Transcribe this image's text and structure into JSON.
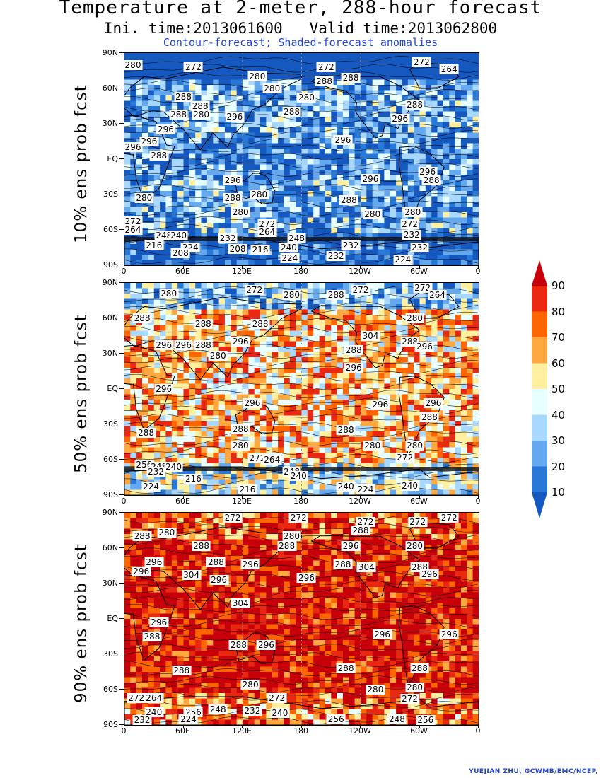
{
  "title": {
    "line1": "Temperature at 2-meter, 288-hour forecast",
    "line2": "Ini. time:2013061600   Valid time:2013062800",
    "line3": "Contour-forecast; Shaded-forecast anomalies"
  },
  "axes": {
    "lat_labels": [
      "90N",
      "60N",
      "30N",
      "EQ",
      "30S",
      "60S",
      "90S"
    ],
    "lon_labels": [
      "0",
      "60E",
      "120E",
      "180",
      "120W",
      "60W",
      "0"
    ]
  },
  "panels": [
    {
      "ylabel": "10% ens prob fcst",
      "contour_labels": [
        {
          "text": "280",
          "lon": 5,
          "lat": 80
        },
        {
          "text": "272",
          "lon": 70,
          "lat": 78
        },
        {
          "text": "272",
          "lon": 205,
          "lat": 78
        },
        {
          "text": "272",
          "lon": 302,
          "lat": 82
        },
        {
          "text": "264",
          "lon": 330,
          "lat": 76
        },
        {
          "text": "280",
          "lon": 135,
          "lat": 70
        },
        {
          "text": "288",
          "lon": 203,
          "lat": 66
        },
        {
          "text": "288",
          "lon": 230,
          "lat": 69
        },
        {
          "text": "280",
          "lon": 150,
          "lat": 60
        },
        {
          "text": "288",
          "lon": 60,
          "lat": 53
        },
        {
          "text": "280",
          "lon": 185,
          "lat": 52
        },
        {
          "text": "288",
          "lon": 77,
          "lat": 45
        },
        {
          "text": "288",
          "lon": 295,
          "lat": 46
        },
        {
          "text": "288",
          "lon": 55,
          "lat": 38
        },
        {
          "text": "280",
          "lon": 78,
          "lat": 38
        },
        {
          "text": "296",
          "lon": 112,
          "lat": 36
        },
        {
          "text": "288",
          "lon": 170,
          "lat": 40
        },
        {
          "text": "296",
          "lon": 280,
          "lat": 34
        },
        {
          "text": "296",
          "lon": 42,
          "lat": 25
        },
        {
          "text": "296",
          "lon": 25,
          "lat": 15
        },
        {
          "text": "296",
          "lon": 222,
          "lat": 16
        },
        {
          "text": "296",
          "lon": 5,
          "lat": 10
        },
        {
          "text": "288",
          "lon": 35,
          "lat": 3
        },
        {
          "text": "296",
          "lon": 308,
          "lat": -11
        },
        {
          "text": "288",
          "lon": 312,
          "lat": -18
        },
        {
          "text": "296",
          "lon": 110,
          "lat": -18
        },
        {
          "text": "296",
          "lon": 250,
          "lat": -17
        },
        {
          "text": "288",
          "lon": 110,
          "lat": -33
        },
        {
          "text": "280",
          "lon": 137,
          "lat": -30
        },
        {
          "text": "280",
          "lon": 20,
          "lat": -33
        },
        {
          "text": "288",
          "lon": 228,
          "lat": -35
        },
        {
          "text": "280",
          "lon": 118,
          "lat": -45
        },
        {
          "text": "280",
          "lon": 293,
          "lat": -45
        },
        {
          "text": "280",
          "lon": 252,
          "lat": -47
        },
        {
          "text": "272",
          "lon": 3,
          "lat": -53
        },
        {
          "text": "272",
          "lon": 145,
          "lat": -55
        },
        {
          "text": "272",
          "lon": 290,
          "lat": -55
        },
        {
          "text": "264",
          "lon": 2,
          "lat": -60
        },
        {
          "text": "264",
          "lon": 145,
          "lat": -62
        },
        {
          "text": "248",
          "lon": 40,
          "lat": -65
        },
        {
          "text": "240",
          "lon": 55,
          "lat": -65
        },
        {
          "text": "232",
          "lon": 105,
          "lat": -67
        },
        {
          "text": "248",
          "lon": 175,
          "lat": -67
        },
        {
          "text": "232",
          "lon": 292,
          "lat": -64
        },
        {
          "text": "216",
          "lon": 30,
          "lat": -73
        },
        {
          "text": "224",
          "lon": 67,
          "lat": -75
        },
        {
          "text": "208",
          "lon": 115,
          "lat": -76
        },
        {
          "text": "216",
          "lon": 138,
          "lat": -77
        },
        {
          "text": "240",
          "lon": 167,
          "lat": -75
        },
        {
          "text": "232",
          "lon": 230,
          "lat": -73
        },
        {
          "text": "232",
          "lon": 300,
          "lat": -75
        },
        {
          "text": "208",
          "lon": 57,
          "lat": -80
        },
        {
          "text": "224",
          "lon": 168,
          "lat": -84
        },
        {
          "text": "232",
          "lon": 215,
          "lat": -82
        },
        {
          "text": "224",
          "lon": 283,
          "lat": -85
        }
      ]
    },
    {
      "ylabel": "50% ens prob fcst",
      "contour_labels": [
        {
          "text": "280",
          "lon": 45,
          "lat": 81
        },
        {
          "text": "272",
          "lon": 132,
          "lat": 84
        },
        {
          "text": "280",
          "lon": 170,
          "lat": 80
        },
        {
          "text": "288",
          "lon": 215,
          "lat": 80
        },
        {
          "text": "272",
          "lon": 240,
          "lat": 84
        },
        {
          "text": "272",
          "lon": 303,
          "lat": 86
        },
        {
          "text": "264",
          "lon": 318,
          "lat": 80
        },
        {
          "text": "288",
          "lon": 18,
          "lat": 60
        },
        {
          "text": "288",
          "lon": 80,
          "lat": 55
        },
        {
          "text": "288",
          "lon": 138,
          "lat": 55
        },
        {
          "text": "280",
          "lon": 295,
          "lat": 60
        },
        {
          "text": "304",
          "lon": 250,
          "lat": 45
        },
        {
          "text": "296",
          "lon": 118,
          "lat": 40
        },
        {
          "text": "288",
          "lon": 290,
          "lat": 40
        },
        {
          "text": "296",
          "lon": 305,
          "lat": 36
        },
        {
          "text": "296",
          "lon": 40,
          "lat": 37
        },
        {
          "text": "296",
          "lon": 60,
          "lat": 37
        },
        {
          "text": "288",
          "lon": 80,
          "lat": 37
        },
        {
          "text": "288",
          "lon": 233,
          "lat": 33
        },
        {
          "text": "280",
          "lon": 95,
          "lat": 28
        },
        {
          "text": "296",
          "lon": 233,
          "lat": 18
        },
        {
          "text": "296",
          "lon": 40,
          "lat": 0
        },
        {
          "text": "296",
          "lon": 130,
          "lat": -12
        },
        {
          "text": "296",
          "lon": 260,
          "lat": -13
        },
        {
          "text": "296",
          "lon": 314,
          "lat": -12
        },
        {
          "text": "288",
          "lon": 310,
          "lat": -24
        },
        {
          "text": "288",
          "lon": 22,
          "lat": -37
        },
        {
          "text": "288",
          "lon": 118,
          "lat": -34
        },
        {
          "text": "288",
          "lon": 225,
          "lat": -35
        },
        {
          "text": "280",
          "lon": 118,
          "lat": -48
        },
        {
          "text": "280",
          "lon": 252,
          "lat": -48
        },
        {
          "text": "280",
          "lon": 295,
          "lat": -48
        },
        {
          "text": "272",
          "lon": 135,
          "lat": -59
        },
        {
          "text": "264",
          "lon": 150,
          "lat": -60
        },
        {
          "text": "272",
          "lon": 285,
          "lat": -58
        },
        {
          "text": "256",
          "lon": 20,
          "lat": -64
        },
        {
          "text": "248",
          "lon": 35,
          "lat": -66
        },
        {
          "text": "240",
          "lon": 50,
          "lat": -66
        },
        {
          "text": "248",
          "lon": 170,
          "lat": -70
        },
        {
          "text": "240",
          "lon": 177,
          "lat": -74
        },
        {
          "text": "232",
          "lon": 32,
          "lat": -70
        },
        {
          "text": "216",
          "lon": 70,
          "lat": -76
        },
        {
          "text": "224",
          "lon": 27,
          "lat": -83
        },
        {
          "text": "216",
          "lon": 125,
          "lat": -85
        },
        {
          "text": "240",
          "lon": 225,
          "lat": -83
        },
        {
          "text": "224",
          "lon": 245,
          "lat": -85
        },
        {
          "text": "240",
          "lon": 290,
          "lat": -82
        }
      ]
    },
    {
      "ylabel": "90% ens prob fcst",
      "contour_labels": [
        {
          "text": "272",
          "lon": 110,
          "lat": 88
        },
        {
          "text": "272",
          "lon": 177,
          "lat": 88
        },
        {
          "text": "272",
          "lon": 245,
          "lat": 82
        },
        {
          "text": "272",
          "lon": 298,
          "lat": 82
        },
        {
          "text": "272",
          "lon": 330,
          "lat": 88
        },
        {
          "text": "280",
          "lon": 43,
          "lat": 73
        },
        {
          "text": "288",
          "lon": 18,
          "lat": 70
        },
        {
          "text": "280",
          "lon": 170,
          "lat": 70
        },
        {
          "text": "288",
          "lon": 240,
          "lat": 75
        },
        {
          "text": "288",
          "lon": 78,
          "lat": 62
        },
        {
          "text": "288",
          "lon": 165,
          "lat": 62
        },
        {
          "text": "296",
          "lon": 230,
          "lat": 62
        },
        {
          "text": "280",
          "lon": 295,
          "lat": 62
        },
        {
          "text": "296",
          "lon": 30,
          "lat": 48
        },
        {
          "text": "288",
          "lon": 93,
          "lat": 48
        },
        {
          "text": "296",
          "lon": 128,
          "lat": 46
        },
        {
          "text": "288",
          "lon": 222,
          "lat": 46
        },
        {
          "text": "304",
          "lon": 246,
          "lat": 44
        },
        {
          "text": "288",
          "lon": 300,
          "lat": 44
        },
        {
          "text": "296",
          "lon": 17,
          "lat": 40
        },
        {
          "text": "304",
          "lon": 68,
          "lat": 37
        },
        {
          "text": "296",
          "lon": 96,
          "lat": 33
        },
        {
          "text": "296",
          "lon": 310,
          "lat": 38
        },
        {
          "text": "296",
          "lon": 185,
          "lat": 35
        },
        {
          "text": "304",
          "lon": 118,
          "lat": 13
        },
        {
          "text": "296",
          "lon": 35,
          "lat": -3
        },
        {
          "text": "288",
          "lon": 28,
          "lat": -15
        },
        {
          "text": "296",
          "lon": 262,
          "lat": -13
        },
        {
          "text": "296",
          "lon": 330,
          "lat": -13
        },
        {
          "text": "288",
          "lon": 116,
          "lat": -22
        },
        {
          "text": "296",
          "lon": 144,
          "lat": -22
        },
        {
          "text": "288",
          "lon": 225,
          "lat": -42
        },
        {
          "text": "288",
          "lon": 300,
          "lat": -42
        },
        {
          "text": "288",
          "lon": 58,
          "lat": -44
        },
        {
          "text": "280",
          "lon": 128,
          "lat": -56
        },
        {
          "text": "280",
          "lon": 255,
          "lat": -60
        },
        {
          "text": "280",
          "lon": 295,
          "lat": -58
        },
        {
          "text": "272",
          "lon": 12,
          "lat": -67
        },
        {
          "text": "264",
          "lon": 30,
          "lat": -67
        },
        {
          "text": "272",
          "lon": 155,
          "lat": -67
        },
        {
          "text": "272",
          "lon": 290,
          "lat": -68
        },
        {
          "text": "240",
          "lon": 30,
          "lat": -79
        },
        {
          "text": "256",
          "lon": 70,
          "lat": -79
        },
        {
          "text": "248",
          "lon": 95,
          "lat": -77
        },
        {
          "text": "232",
          "lon": 130,
          "lat": -78
        },
        {
          "text": "240",
          "lon": 158,
          "lat": -80
        },
        {
          "text": "224",
          "lon": 65,
          "lat": -85
        },
        {
          "text": "248",
          "lon": 277,
          "lat": -85
        },
        {
          "text": "256",
          "lon": 306,
          "lat": -86
        },
        {
          "text": "256",
          "lon": 215,
          "lat": -85
        },
        {
          "text": "232",
          "lon": 18,
          "lat": -90
        }
      ]
    }
  ],
  "colorbar": {
    "labels": [
      "90",
      "80",
      "70",
      "60",
      "50",
      "40",
      "30",
      "20",
      "10"
    ],
    "colors": [
      "#c8000a",
      "#e82810",
      "#ff6600",
      "#ffa840",
      "#fff0a0",
      "#e8ffff",
      "#a8d8ff",
      "#64a8f0",
      "#2878d8",
      "#1458c0"
    ]
  },
  "credit": "YUEJIAN ZHU, GCWMB/EMC/NCEP,"
}
